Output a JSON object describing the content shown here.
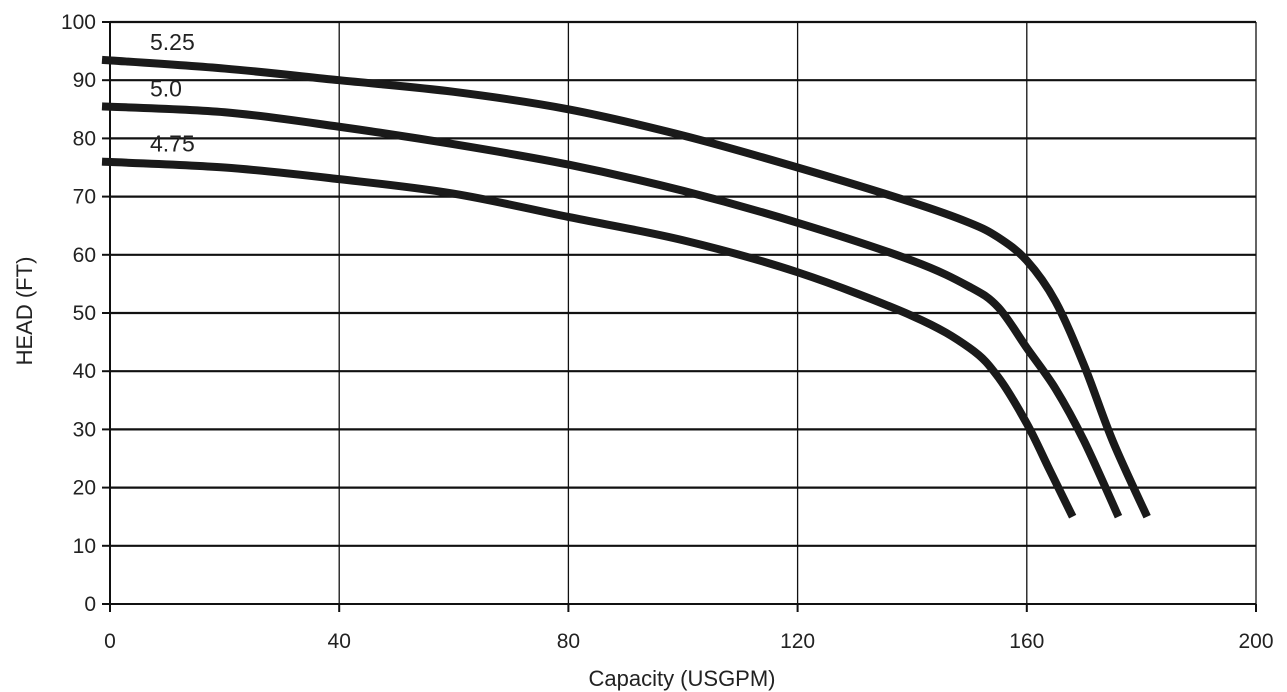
{
  "chart_data": {
    "type": "line",
    "title": "",
    "xlabel": "Capacity (USGPM)",
    "ylabel": "HEAD (FT)",
    "xlim": [
      0,
      200
    ],
    "ylim": [
      0,
      100
    ],
    "xticks": [
      0,
      40,
      80,
      120,
      160,
      200
    ],
    "yticks": [
      0,
      10,
      20,
      30,
      40,
      50,
      60,
      70,
      80,
      90,
      100
    ],
    "grid": true,
    "legend": "none",
    "line_color": "#1a1a1a",
    "series": [
      {
        "name": "5.25",
        "x": [
          0,
          20,
          40,
          60,
          80,
          100,
          120,
          140,
          150,
          155,
          160,
          165,
          170,
          175,
          181
        ],
        "y": [
          93.5,
          92,
          90,
          88,
          85,
          80.5,
          75,
          69,
          65.5,
          63,
          59,
          52,
          41,
          28,
          15
        ]
      },
      {
        "name": "5.0",
        "x": [
          0,
          20,
          40,
          60,
          80,
          100,
          120,
          140,
          150,
          155,
          160,
          165,
          170,
          176
        ],
        "y": [
          85.5,
          84.5,
          82,
          79,
          75.5,
          71,
          65.5,
          59,
          54.5,
          51,
          44,
          37,
          28,
          15
        ]
      },
      {
        "name": "4.75",
        "x": [
          0,
          20,
          40,
          60,
          80,
          100,
          120,
          140,
          150,
          155,
          160,
          164,
          168
        ],
        "y": [
          76,
          75,
          73,
          70.5,
          66.5,
          62.5,
          57,
          49.5,
          44,
          39,
          31,
          23,
          15
        ]
      }
    ]
  }
}
